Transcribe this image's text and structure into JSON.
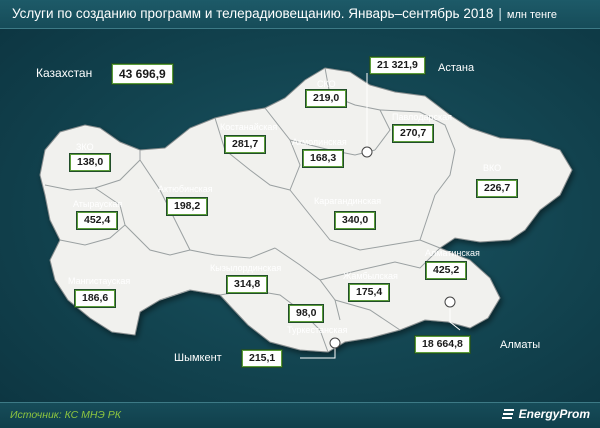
{
  "header": {
    "title": "Услуги по созданию программ и телерадиовещанию. Январь–сентябрь 2018",
    "separator": "|",
    "unit": "млн тенге"
  },
  "country": {
    "label": "Казахстан",
    "value": "43 696,9"
  },
  "regions": [
    {
      "id": "zko",
      "name": "ЗКО",
      "value": "138,0"
    },
    {
      "id": "atyrau",
      "name": "Атырауская",
      "value": "452,4"
    },
    {
      "id": "mangystau",
      "name": "Мангистауская",
      "value": "186,6"
    },
    {
      "id": "aktobe",
      "name": "Актюбинская",
      "value": "198,2"
    },
    {
      "id": "kostanay",
      "name": "Костанайская",
      "value": "281,7"
    },
    {
      "id": "sko",
      "name": "СКО",
      "value": "219,0"
    },
    {
      "id": "akmola",
      "name": "Акмолинская",
      "value": "168,3"
    },
    {
      "id": "pavlodar",
      "name": "Павлодарская",
      "value": "270,7"
    },
    {
      "id": "vko",
      "name": "ВКО",
      "value": "226,7"
    },
    {
      "id": "karaganda",
      "name": "Карагандинская",
      "value": "340,0"
    },
    {
      "id": "kyzylorda",
      "name": "Кызылординская",
      "value": "314,8"
    },
    {
      "id": "zhambyl",
      "name": "Жамбылская",
      "value": "175,4"
    },
    {
      "id": "almaty_reg",
      "name": "Алматинская",
      "value": "425,2"
    },
    {
      "id": "turkestan",
      "name": "Туркестанская",
      "value": "98,0"
    }
  ],
  "cities": [
    {
      "id": "astana",
      "name": "Астана",
      "value": "21 321,9"
    },
    {
      "id": "almaty",
      "name": "Алматы",
      "value": "18 664,8"
    },
    {
      "id": "shymkent",
      "name": "Шымкент",
      "value": "215,1"
    }
  ],
  "footer": {
    "source": "Источник: КС МНЭ РК",
    "brand": "EnergyProm"
  },
  "colors": {
    "background": "#12434f",
    "land": "#f1f1ee",
    "region_border": "#8a8f90",
    "value_border": "#5b9d3a",
    "source_text": "#8ec63f"
  }
}
